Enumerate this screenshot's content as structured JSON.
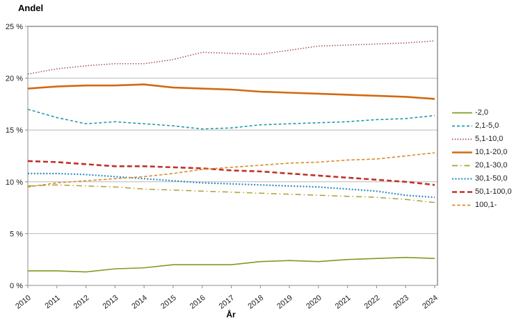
{
  "chart_data": {
    "type": "line",
    "title": "Andel",
    "xlabel": "År",
    "ylim": [
      0,
      25
    ],
    "grid_on": true,
    "legend_position": "right",
    "grid_color": "#b8b8b8",
    "axis_color": "#8c8c8c",
    "top_gridline_color": "#5a5a5a",
    "text_color": "#1a1a1a",
    "y_ticks": [
      {
        "value": 0,
        "label": "0 %"
      },
      {
        "value": 5,
        "label": "5 %"
      },
      {
        "value": 10,
        "label": "10 %"
      },
      {
        "value": 15,
        "label": "15 %"
      },
      {
        "value": 20,
        "label": "20 %"
      },
      {
        "value": 25,
        "label": "25 %"
      }
    ],
    "x": [
      "2010",
      "2011",
      "2012",
      "2013",
      "2014",
      "2015",
      "2016",
      "2017",
      "2018",
      "2019",
      "2020",
      "2021",
      "2022",
      "2023",
      "2024"
    ],
    "series": [
      {
        "name": "-2,0",
        "color": "#7d9b22",
        "dash": "",
        "width": 1.6,
        "values": [
          1.4,
          1.4,
          1.3,
          1.6,
          1.7,
          2.0,
          2.0,
          2.0,
          2.3,
          2.4,
          2.3,
          2.5,
          2.6,
          2.7,
          2.6
        ]
      },
      {
        "name": "2,1-5,0",
        "color": "#1f9bab",
        "dash": "4 3",
        "width": 1.6,
        "values": [
          17.0,
          16.2,
          15.6,
          15.8,
          15.6,
          15.4,
          15.1,
          15.2,
          15.5,
          15.6,
          15.7,
          15.8,
          16.0,
          16.1,
          16.4
        ]
      },
      {
        "name": "5,1-10,0",
        "color": "#a64a4a",
        "dash": "1.5 2.3",
        "width": 1.5,
        "values": [
          20.4,
          20.9,
          21.2,
          21.4,
          21.4,
          21.8,
          22.5,
          22.4,
          22.3,
          22.7,
          23.1,
          23.2,
          23.3,
          23.4,
          23.6
        ]
      },
      {
        "name": "10,1-20,0",
        "color": "#d2690f",
        "dash": "",
        "width": 2.6,
        "values": [
          19.0,
          19.2,
          19.3,
          19.3,
          19.4,
          19.1,
          19.0,
          18.9,
          18.7,
          18.6,
          18.5,
          18.4,
          18.3,
          18.2,
          18.0
        ]
      },
      {
        "name": "20,1-30,0",
        "color": "#ac9f32",
        "dash": "8 4 1.5 4",
        "width": 1.5,
        "values": [
          9.6,
          9.7,
          9.6,
          9.5,
          9.3,
          9.2,
          9.1,
          9.0,
          8.9,
          8.8,
          8.7,
          8.6,
          8.5,
          8.3,
          8.0
        ]
      },
      {
        "name": "30,1-50,0",
        "color": "#2e8fc0",
        "dash": "2 2.4",
        "width": 2.2,
        "values": [
          10.8,
          10.8,
          10.7,
          10.5,
          10.3,
          10.1,
          9.9,
          9.8,
          9.7,
          9.6,
          9.5,
          9.3,
          9.1,
          8.7,
          8.5
        ]
      },
      {
        "name": "50,1-100,0",
        "color": "#bf3128",
        "dash": "7 4",
        "width": 2.6,
        "values": [
          12.0,
          11.9,
          11.7,
          11.5,
          11.5,
          11.4,
          11.3,
          11.1,
          11.0,
          10.8,
          10.6,
          10.4,
          10.2,
          10.0,
          9.7
        ]
      },
      {
        "name": "100,1-",
        "color": "#d88c2b",
        "dash": "4.5 2.8",
        "width": 1.6,
        "values": [
          9.5,
          9.9,
          10.1,
          10.3,
          10.5,
          10.8,
          11.2,
          11.4,
          11.6,
          11.8,
          11.9,
          12.1,
          12.2,
          12.5,
          12.8
        ]
      }
    ]
  }
}
